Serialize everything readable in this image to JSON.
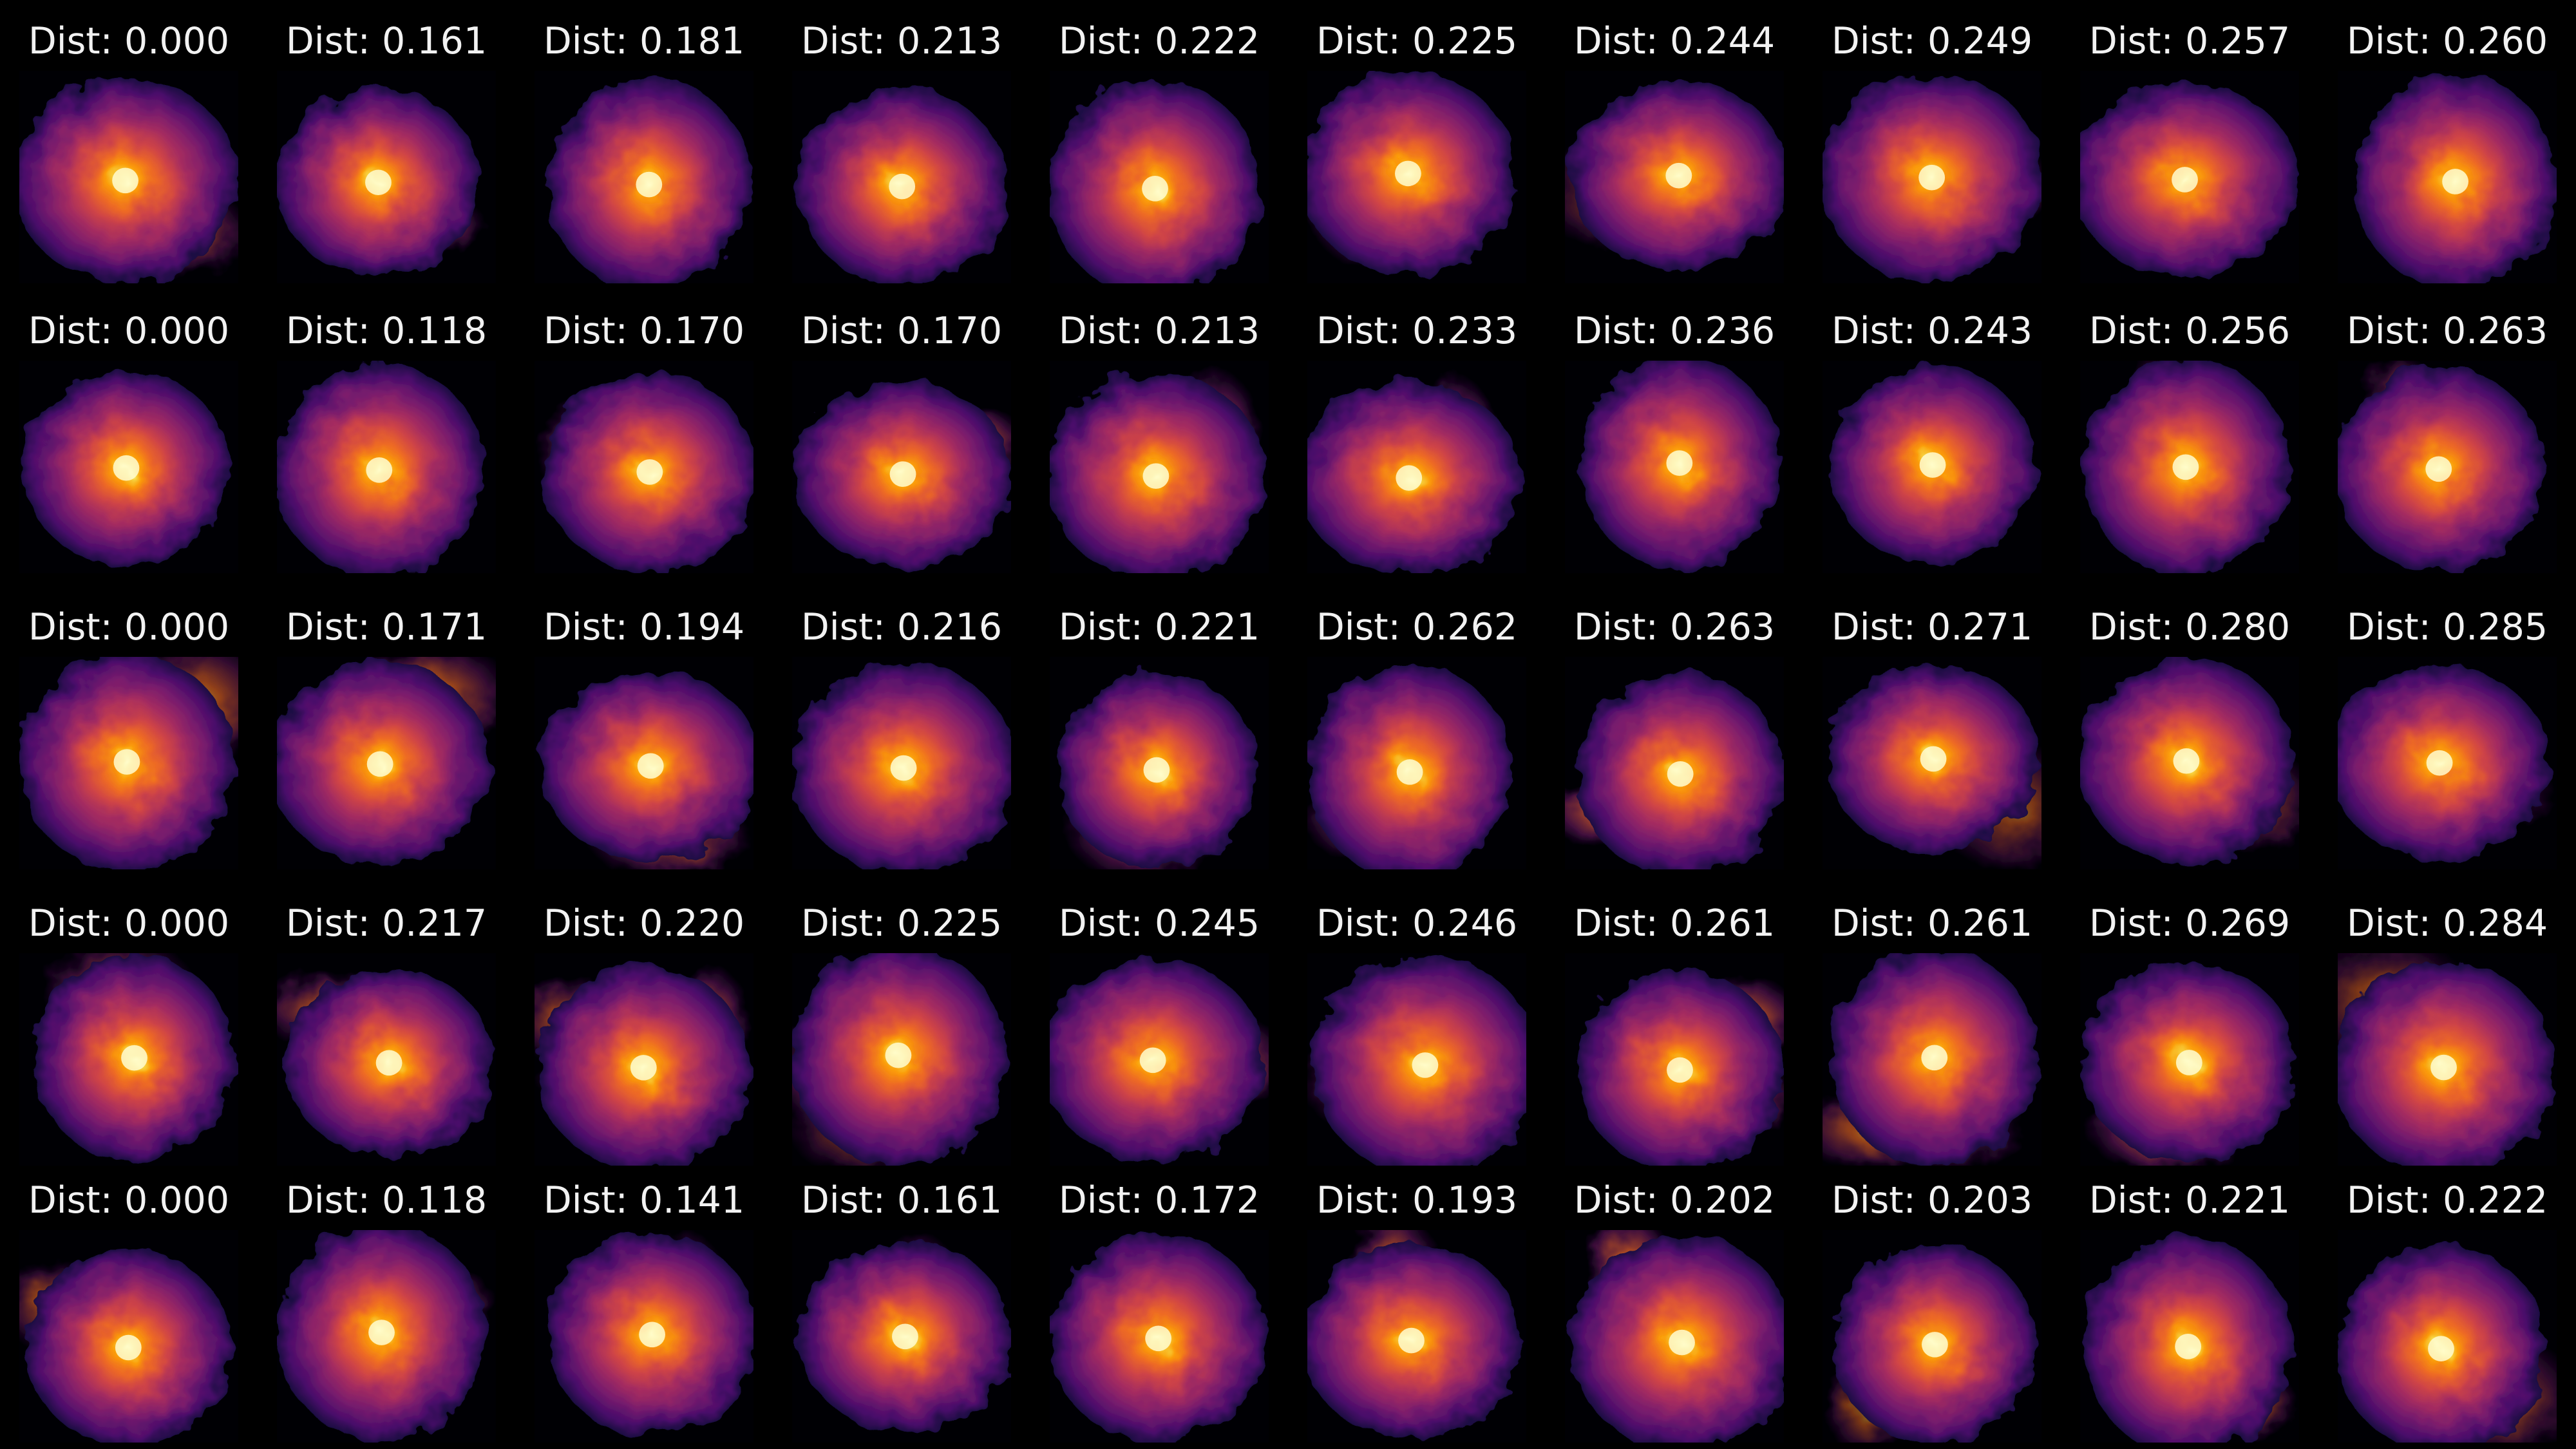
{
  "label_prefix": "Dist:",
  "colormap": [
    "#000004",
    "#1b0c41",
    "#4a0c6b",
    "#781c6d",
    "#a52c60",
    "#cf4446",
    "#ed6925",
    "#fb9b06",
    "#f7d13d",
    "#fcffa4"
  ],
  "rows": [
    {
      "distances": [
        "0.000",
        "0.161",
        "0.181",
        "0.213",
        "0.222",
        "0.225",
        "0.244",
        "0.249",
        "0.257",
        "0.260"
      ],
      "icon": "halo-density-thumbnail"
    },
    {
      "distances": [
        "0.000",
        "0.118",
        "0.170",
        "0.170",
        "0.213",
        "0.233",
        "0.236",
        "0.243",
        "0.256",
        "0.263"
      ],
      "icon": "halo-density-thumbnail"
    },
    {
      "distances": [
        "0.000",
        "0.171",
        "0.194",
        "0.216",
        "0.221",
        "0.262",
        "0.263",
        "0.271",
        "0.280",
        "0.285"
      ],
      "icon": "halo-density-thumbnail"
    },
    {
      "distances": [
        "0.000",
        "0.217",
        "0.220",
        "0.225",
        "0.245",
        "0.246",
        "0.261",
        "0.261",
        "0.269",
        "0.284"
      ],
      "icon": "halo-density-thumbnail"
    },
    {
      "distances": [
        "0.000",
        "0.118",
        "0.141",
        "0.161",
        "0.172",
        "0.193",
        "0.202",
        "0.203",
        "0.221",
        "0.222"
      ],
      "icon": "halo-density-thumbnail"
    }
  ]
}
